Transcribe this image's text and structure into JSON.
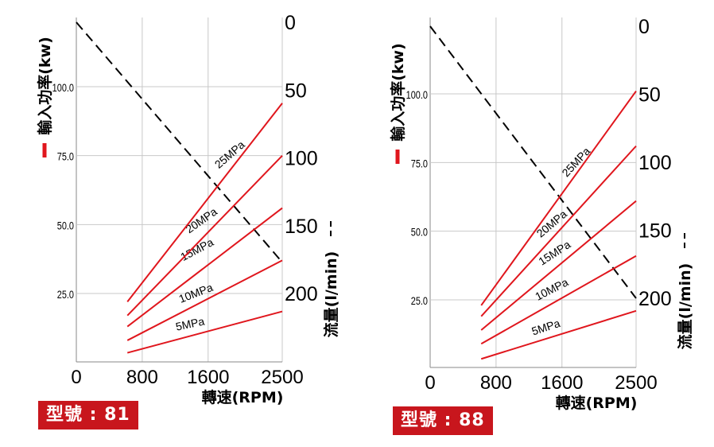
{
  "chart_data": [
    {
      "type": "line",
      "model_label": "型號 : 81",
      "x_axis": {
        "label": "轉速(RPM)",
        "ticks": [
          0,
          800,
          1600,
          2500
        ]
      },
      "left_axis": {
        "label": "輸入功率(kw)",
        "legend_marker": "solid red line",
        "ticks": [
          "25.0",
          "50.0",
          "75.0",
          "100.0"
        ]
      },
      "right_axis": {
        "label": "流量(l/min)",
        "legend_marker": "dashed black line",
        "ticks": [
          "0",
          "50",
          "100",
          "150",
          "200"
        ]
      },
      "series": [
        {
          "name": "5MPa",
          "x": [
            620,
            2500
          ],
          "y": [
            3.5,
            18.5
          ]
        },
        {
          "name": "10MPa",
          "x": [
            620,
            2500
          ],
          "y": [
            8,
            37
          ]
        },
        {
          "name": "15MPa",
          "x": [
            620,
            2500
          ],
          "y": [
            13,
            56
          ]
        },
        {
          "name": "20MPa",
          "x": [
            620,
            2500
          ],
          "y": [
            17,
            75
          ]
        },
        {
          "name": "25MPa",
          "x": [
            620,
            2500
          ],
          "y": [
            22,
            94
          ]
        }
      ],
      "flow": {
        "x": [
          0,
          2500
        ],
        "y": [
          0,
          177
        ]
      },
      "grid": true
    },
    {
      "type": "line",
      "model_label": "型號 : 88",
      "x_axis": {
        "label": "轉速(RPM)",
        "ticks": [
          0,
          800,
          1600,
          2500
        ]
      },
      "left_axis": {
        "label": "輸入功率(kw)",
        "legend_marker": "solid red line",
        "ticks": [
          "25.0",
          "50.0",
          "75.0",
          "100.0"
        ]
      },
      "right_axis": {
        "label": "流量(l/min)",
        "legend_marker": "dashed black line",
        "ticks": [
          "0",
          "50",
          "100",
          "150",
          "200"
        ]
      },
      "series": [
        {
          "name": "5MPa",
          "x": [
            620,
            2500
          ],
          "y": [
            3.5,
            21
          ]
        },
        {
          "name": "10MPa",
          "x": [
            620,
            2500
          ],
          "y": [
            9,
            41
          ]
        },
        {
          "name": "15MPa",
          "x": [
            620,
            2500
          ],
          "y": [
            14,
            61
          ]
        },
        {
          "name": "20MPa",
          "x": [
            620,
            2500
          ],
          "y": [
            19,
            81
          ]
        },
        {
          "name": "25MPa",
          "x": [
            620,
            2500
          ],
          "y": [
            23,
            101
          ]
        }
      ],
      "flow": {
        "x": [
          0,
          2500
        ],
        "y": [
          0,
          200
        ]
      },
      "grid": true
    }
  ],
  "colors": {
    "power_line": "#e0161d",
    "flow_line": "#000000",
    "badge": "#c8161d",
    "grid": "#c8c8c8"
  }
}
